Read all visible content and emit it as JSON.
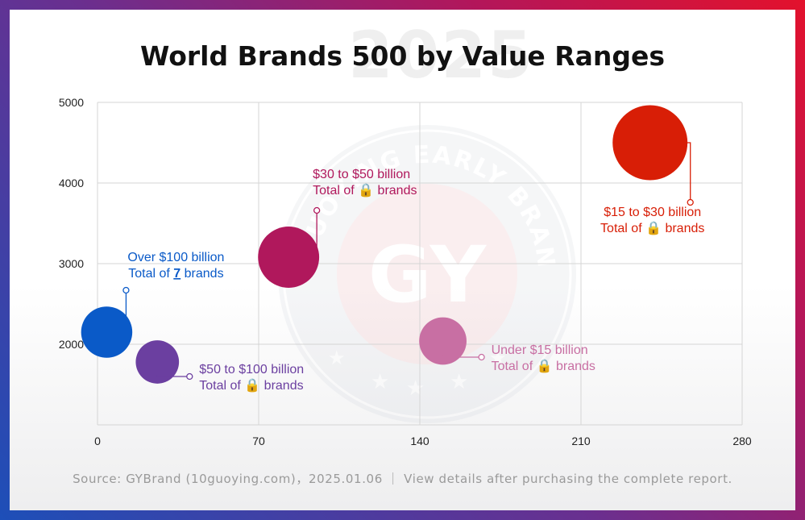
{
  "watermark": {
    "year": "2025",
    "seal_text": "GUOYING EARLY BRAND INSTITUTE",
    "seal_initials": "GY"
  },
  "title": "World Brands 500 by Value Ranges",
  "source": "Source: GYBrand (10guoying.com)，2025.01.06 ｜ View details after purchasing the complete report.",
  "chart_data": {
    "type": "scatter",
    "title": "World Brands 500 by Value Ranges",
    "xlabel": "",
    "ylabel": "",
    "xlim": [
      0,
      280
    ],
    "ylim": [
      1000,
      5000
    ],
    "xticks": [
      0,
      70,
      140,
      210,
      280
    ],
    "yticks": [
      2000,
      3000,
      4000,
      5000
    ],
    "grid": true,
    "points": [
      {
        "x": 4,
        "y": 2150,
        "size": 7,
        "color": "#0a5ac8",
        "label_line1": "Over $100 billion",
        "label_line2_pre": "Total of ",
        "label_value": "7",
        "label_line2_post": " brands"
      },
      {
        "x": 26,
        "y": 1780,
        "size": 5,
        "color": "#6b3fa0",
        "label_line1": "$50 to $100 billion",
        "label_line2_pre": "Total of ",
        "label_value": "🔒",
        "label_line2_post": " brands"
      },
      {
        "x": 83,
        "y": 3080,
        "size": 10,
        "color": "#b0185c",
        "label_line1": "$30 to $50 billion",
        "label_line2_pre": "Total of ",
        "label_value": "🔒",
        "label_line2_post": " brands"
      },
      {
        "x": 150,
        "y": 2040,
        "size": 6,
        "color": "#c86fa3",
        "label_line1": "Under $15 billion",
        "label_line2_pre": "Total of ",
        "label_value": "🔒",
        "label_line2_post": " brands"
      },
      {
        "x": 240,
        "y": 4500,
        "size": 15,
        "color": "#d81e06",
        "label_line1": "$15 to $30 billion",
        "label_line2_pre": "Total of ",
        "label_value": "🔒",
        "label_line2_post": " brands"
      }
    ]
  }
}
